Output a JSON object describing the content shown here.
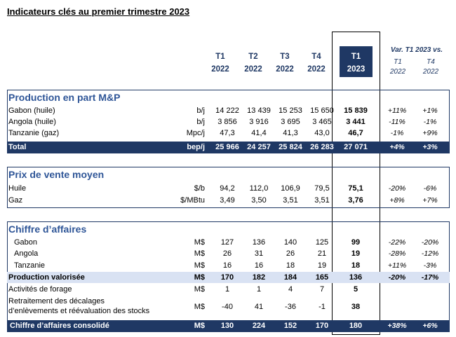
{
  "title": "Indicateurs clés au premier trimestre 2023",
  "columns": [
    {
      "q": "T1",
      "y": "2022"
    },
    {
      "q": "T2",
      "y": "2022"
    },
    {
      "q": "T3",
      "y": "2022"
    },
    {
      "q": "T4",
      "y": "2022"
    },
    {
      "q": "T1",
      "y": "2023"
    }
  ],
  "variation": {
    "title": "Var. T1 2023 vs.",
    "sub": [
      {
        "q": "T1",
        "y": "2022"
      },
      {
        "q": "T4",
        "y": "2022"
      }
    ]
  },
  "sections": {
    "production": {
      "title": "Production en part M&P",
      "rows": [
        {
          "label": "Gabon (huile)",
          "unit": "b/j",
          "values": [
            "14 222",
            "13 439",
            "15 253",
            "15 650",
            "15 839"
          ],
          "var": [
            "+11%",
            "+1%"
          ]
        },
        {
          "label": "Angola (huile)",
          "unit": "b/j",
          "values": [
            "3 856",
            "3 916",
            "3 695",
            "3 465",
            "3 441"
          ],
          "var": [
            "-11%",
            "-1%"
          ]
        },
        {
          "label": "Tanzanie (gaz)",
          "unit": "Mpc/j",
          "values": [
            "47,3",
            "41,4",
            "41,3",
            "43,0",
            "46,7"
          ],
          "var": [
            "-1%",
            "+9%"
          ]
        }
      ],
      "total": {
        "label": "Total",
        "unit": "bep/j",
        "values": [
          "25 966",
          "24 257",
          "25 824",
          "26 283",
          "27 071"
        ],
        "var": [
          "+4%",
          "+3%"
        ]
      }
    },
    "prix": {
      "title": "Prix de vente moyen",
      "rows": [
        {
          "label": "Huile",
          "unit": "$/b",
          "values": [
            "94,2",
            "112,0",
            "106,9",
            "79,5",
            "75,1"
          ],
          "var": [
            "-20%",
            "-6%"
          ]
        },
        {
          "label": "Gaz",
          "unit": "$/MBtu",
          "values": [
            "3,49",
            "3,50",
            "3,51",
            "3,51",
            "3,76"
          ],
          "var": [
            "+8%",
            "+7%"
          ]
        }
      ]
    },
    "ca": {
      "title": "Chiffre d’affaires",
      "rows": [
        {
          "label": "Gabon",
          "unit": "M$",
          "values": [
            "127",
            "136",
            "140",
            "125",
            "99"
          ],
          "var": [
            "-22%",
            "-20%"
          ]
        },
        {
          "label": "Angola",
          "unit": "M$",
          "values": [
            "26",
            "31",
            "26",
            "21",
            "19"
          ],
          "var": [
            "-28%",
            "-12%"
          ]
        },
        {
          "label": "Tanzanie",
          "unit": "M$",
          "values": [
            "16",
            "16",
            "18",
            "19",
            "18"
          ],
          "var": [
            "+11%",
            "-3%"
          ]
        }
      ],
      "valorisee": {
        "label": "Production valorisée",
        "unit": "M$",
        "values": [
          "170",
          "182",
          "184",
          "165",
          "136"
        ],
        "var": [
          "-20%",
          "-17%"
        ]
      },
      "forage": {
        "label": "Activités de forage",
        "unit": "M$",
        "values": [
          "1",
          "1",
          "4",
          "7",
          "5"
        ]
      },
      "retraitement": {
        "label1": "Retraitement des décalages",
        "label2": "d’enlèvements et réévaluation des stocks",
        "unit": "M$",
        "values": [
          "-40",
          "41",
          "-36",
          "-1",
          "38"
        ]
      },
      "consolide": {
        "label": "Chiffre d’affaires consolidé",
        "unit": "M$",
        "values": [
          "130",
          "224",
          "152",
          "170",
          "180"
        ],
        "var": [
          "+38%",
          "+6%"
        ]
      }
    }
  }
}
